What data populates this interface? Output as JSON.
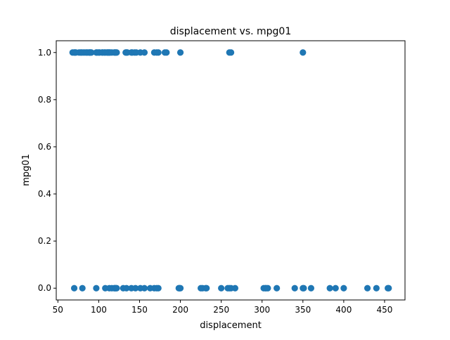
{
  "chart_data": {
    "type": "scatter",
    "title": "displacement vs. mpg01",
    "xlabel": "displacement",
    "ylabel": "mpg01",
    "xlim": [
      48,
      475
    ],
    "ylim": [
      -0.05,
      1.05
    ],
    "xticks": [
      50,
      100,
      150,
      200,
      250,
      300,
      350,
      400,
      450
    ],
    "yticks": [
      0.0,
      0.2,
      0.4,
      0.6,
      0.8,
      1.0
    ],
    "xtick_labels": [
      "50",
      "100",
      "150",
      "200",
      "250",
      "300",
      "350",
      "400",
      "450"
    ],
    "ytick_labels": [
      "0.0",
      "0.2",
      "0.4",
      "0.6",
      "0.8",
      "1.0"
    ],
    "grid": false,
    "marker_color": "#1f77b4",
    "series": [
      {
        "x": [
          68,
          70,
          71,
          72,
          76,
          78,
          79,
          81,
          83,
          85,
          86,
          88,
          89,
          90,
          91,
          97,
          98,
          100,
          101,
          104,
          105,
          107,
          108,
          110,
          111,
          112,
          113,
          114,
          116,
          119,
          120,
          121,
          122,
          133,
          134,
          135,
          140,
          141,
          144,
          146,
          151,
          156,
          168,
          171,
          173,
          181,
          183,
          200,
          260,
          262,
          350,
          70,
          80,
          97,
          108,
          113,
          116,
          119,
          120,
          121,
          122,
          130,
          134,
          140,
          145,
          151,
          156,
          163,
          168,
          171,
          173,
          198,
          199,
          200,
          225,
          227,
          231,
          232,
          250,
          258,
          260,
          262,
          267,
          302,
          304,
          305,
          307,
          318,
          340,
          350,
          351,
          360,
          383,
          390,
          400,
          429,
          440,
          454,
          455
        ],
        "y": [
          1,
          1,
          1,
          1,
          1,
          1,
          1,
          1,
          1,
          1,
          1,
          1,
          1,
          1,
          1,
          1,
          1,
          1,
          1,
          1,
          1,
          1,
          1,
          1,
          1,
          1,
          1,
          1,
          1,
          1,
          1,
          1,
          1,
          1,
          1,
          1,
          1,
          1,
          1,
          1,
          1,
          1,
          1,
          1,
          1,
          1,
          1,
          1,
          1,
          1,
          1,
          0,
          0,
          0,
          0,
          0,
          0,
          0,
          0,
          0,
          0,
          0,
          0,
          0,
          0,
          0,
          0,
          0,
          0,
          0,
          0,
          0,
          0,
          0,
          0,
          0,
          0,
          0,
          0,
          0,
          0,
          0,
          0,
          0,
          0,
          0,
          0,
          0,
          0,
          0,
          0,
          0,
          0,
          0,
          0,
          0,
          0,
          0,
          0
        ]
      }
    ]
  }
}
